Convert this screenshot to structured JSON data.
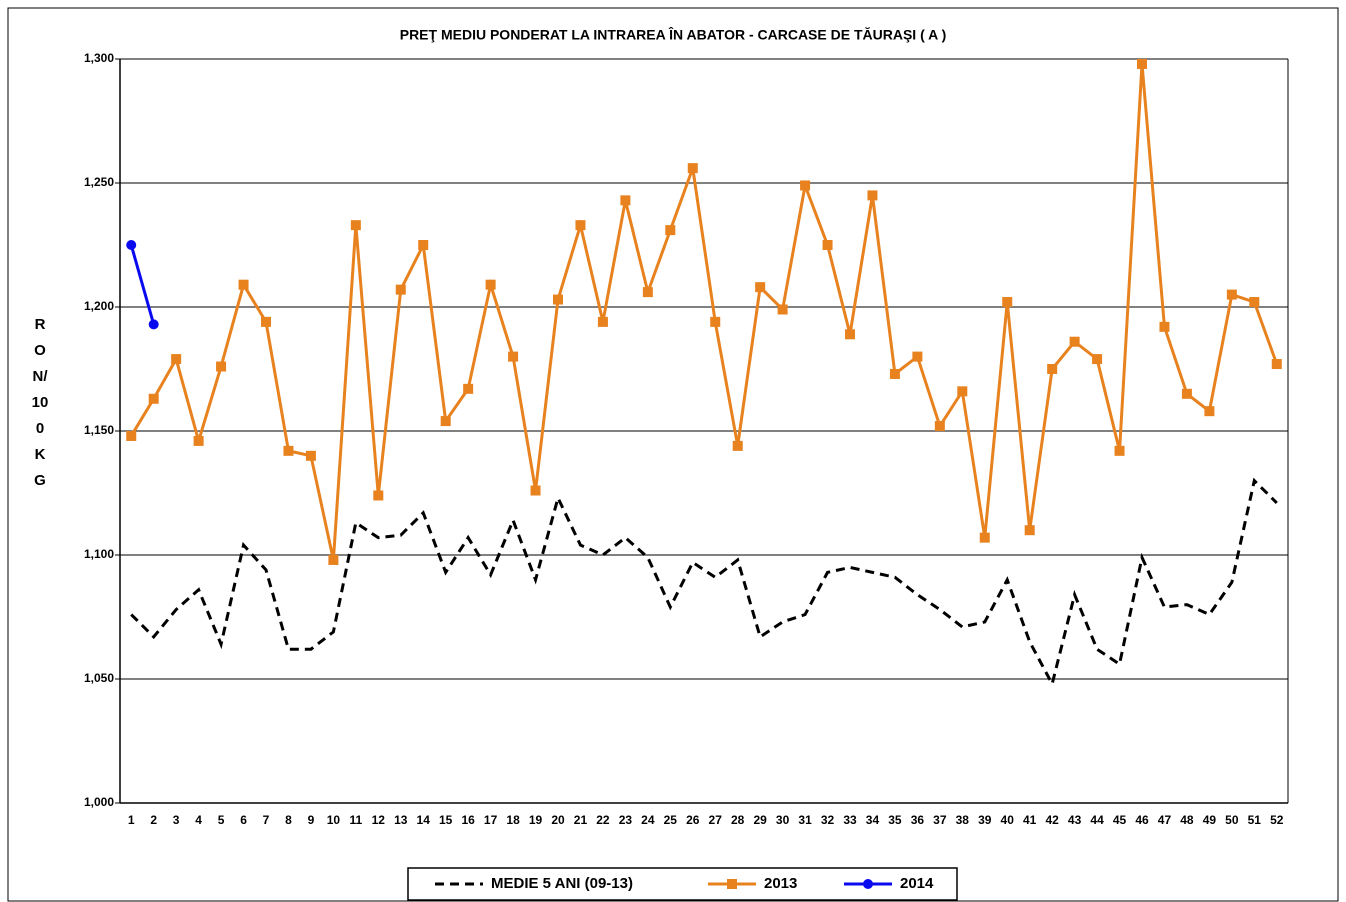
{
  "chart_data": {
    "type": "line",
    "title": "PREŢ MEDIU PONDERAT LA INTRAREA ÎN ABATOR - CARCASE DE TĂURAŞI ( A )",
    "y_label": "RON/100 KG",
    "categories": [
      1,
      2,
      3,
      4,
      5,
      6,
      7,
      8,
      9,
      10,
      11,
      12,
      13,
      14,
      15,
      16,
      17,
      18,
      19,
      20,
      21,
      22,
      23,
      24,
      25,
      26,
      27,
      28,
      29,
      30,
      31,
      32,
      33,
      34,
      35,
      36,
      37,
      38,
      39,
      40,
      41,
      42,
      43,
      44,
      45,
      46,
      47,
      48,
      49,
      50,
      51,
      52
    ],
    "ylim": [
      1000,
      1300
    ],
    "yticks": [
      {
        "value": 1000,
        "label": "1,000"
      },
      {
        "value": 1050,
        "label": "1,050"
      },
      {
        "value": 1100,
        "label": "1,100"
      },
      {
        "value": 1150,
        "label": "1,150"
      },
      {
        "value": 1200,
        "label": "1,200"
      },
      {
        "value": 1250,
        "label": "1,250"
      },
      {
        "value": 1300,
        "label": "1,300"
      }
    ],
    "grid": true,
    "legend": "bottom",
    "series": [
      {
        "name": "MEDIE 5 ANI (09-13)",
        "color": "#000000",
        "dashed": true,
        "marker": "none",
        "values": [
          1076,
          1067,
          1078,
          1086,
          1064,
          1104,
          1094,
          1062,
          1062,
          1069,
          1113,
          1107,
          1108,
          1117,
          1093,
          1107,
          1092,
          1114,
          1090,
          1123,
          1104,
          1100,
          1107,
          1099,
          1079,
          1097,
          1091,
          1098,
          1067,
          1073,
          1076,
          1093,
          1095,
          1093,
          1091,
          1084,
          1078,
          1071,
          1073,
          1090,
          1065,
          1048,
          1084,
          1062,
          1056,
          1099,
          1079,
          1080,
          1076,
          1089,
          1130,
          1121
        ]
      },
      {
        "name": "2013",
        "color": "#E8821E",
        "dashed": false,
        "marker": "square",
        "values": [
          1148,
          1163,
          1179,
          1146,
          1176,
          1209,
          1194,
          1142,
          1140,
          1098,
          1233,
          1124,
          1207,
          1225,
          1154,
          1167,
          1209,
          1180,
          1126,
          1203,
          1233,
          1194,
          1243,
          1206,
          1231,
          1256,
          1194,
          1144,
          1208,
          1199,
          1249,
          1225,
          1189,
          1245,
          1173,
          1180,
          1152,
          1166,
          1107,
          1202,
          1110,
          1175,
          1186,
          1179,
          1142,
          1298,
          1192,
          1165,
          1158,
          1205,
          1202,
          1177
        ]
      },
      {
        "name": "2014",
        "color": "#0A0AF0",
        "dashed": false,
        "marker": "circle",
        "values": [
          1225,
          1193,
          null,
          null,
          null,
          null,
          null,
          null,
          null,
          null,
          null,
          null,
          null,
          null,
          null,
          null,
          null,
          null,
          null,
          null,
          null,
          null,
          null,
          null,
          null,
          null,
          null,
          null,
          null,
          null,
          null,
          null,
          null,
          null,
          null,
          null,
          null,
          null,
          null,
          null,
          null,
          null,
          null,
          null,
          null,
          null,
          null,
          null,
          null,
          null,
          null,
          null
        ]
      }
    ]
  }
}
